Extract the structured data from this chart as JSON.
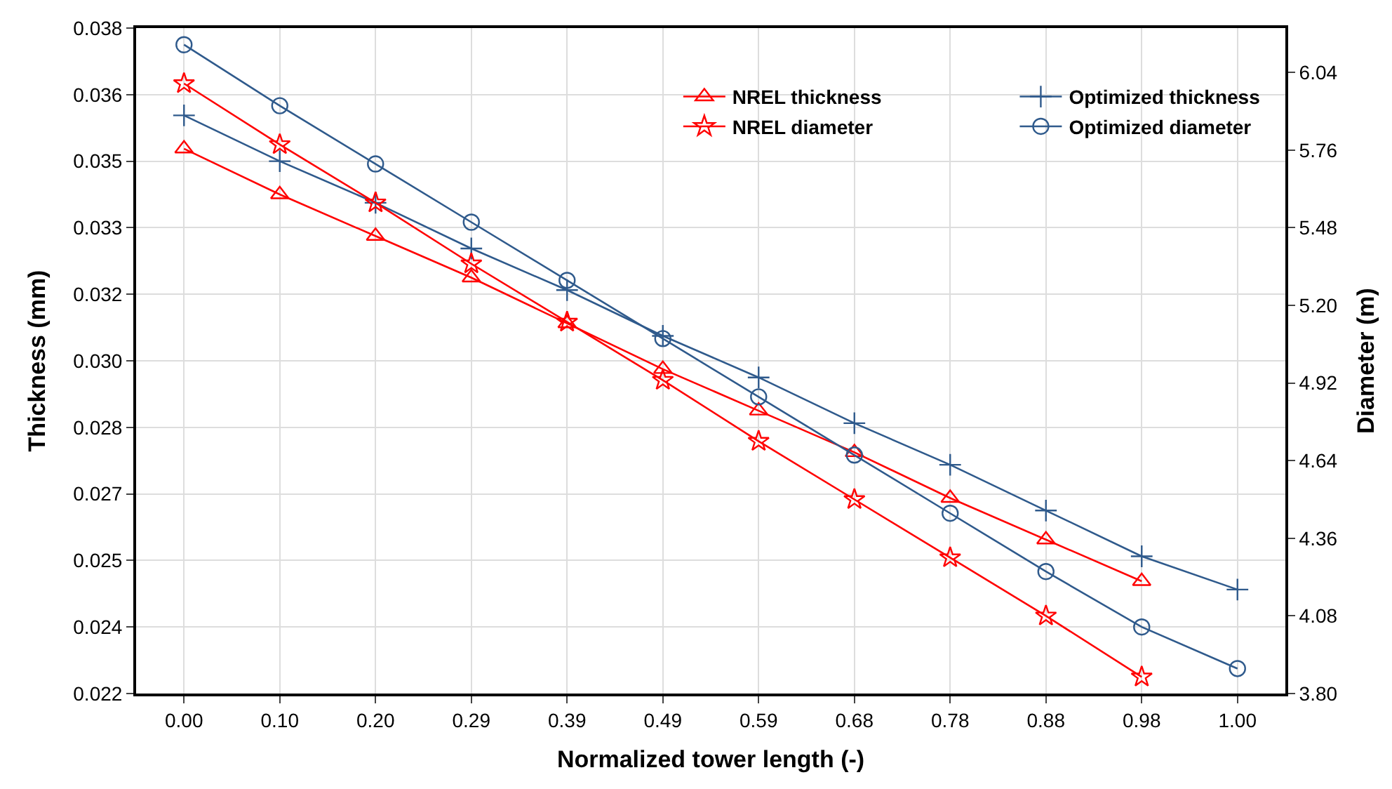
{
  "chart_data": {
    "type": "line",
    "xlabel": "Normalized tower length (-)",
    "ylabel": "Thickness (mm)",
    "y2label": "Diameter (m)",
    "categories": [
      "0.00",
      "0.10",
      "0.20",
      "0.29",
      "0.39",
      "0.49",
      "0.59",
      "0.68",
      "0.78",
      "0.88",
      "0.98",
      "1.00"
    ],
    "series": [
      {
        "name": "NREL thickness",
        "color": "#ff0000",
        "marker": "triangle",
        "values": [
          0.0351,
          0.034,
          0.033,
          0.032,
          0.0309,
          0.0298,
          0.0288,
          0.0278,
          0.0267,
          0.0257,
          0.0247,
          null
        ]
      },
      {
        "name": "Optimized thickness",
        "color": "#2f5a8c",
        "marker": "cross",
        "values": [
          0.0359,
          0.0348,
          0.0338,
          0.0327,
          0.0317,
          0.0306,
          0.0296,
          0.0285,
          0.0275,
          0.0264,
          0.0253,
          0.0245
        ]
      },
      {
        "name": "NREL diameter",
        "color": "#ff0000",
        "marker": "star",
        "axis": "y2",
        "values": [
          6.0,
          5.78,
          5.57,
          5.35,
          5.14,
          4.93,
          4.71,
          4.5,
          4.29,
          4.08,
          3.86,
          null
        ]
      },
      {
        "name": "Optimized diameter",
        "color": "#2f5a8c",
        "marker": "circle",
        "axis": "y2",
        "values": [
          6.14,
          5.92,
          5.71,
          5.5,
          5.29,
          5.08,
          4.87,
          4.66,
          4.45,
          4.24,
          4.04,
          3.89
        ]
      }
    ],
    "ylim": [
      0.022,
      0.038
    ],
    "yticks": [
      {
        "value": 0.022,
        "label": "0.022"
      },
      {
        "value": 0.0236,
        "label": "0.024"
      },
      {
        "value": 0.0252,
        "label": "0.025"
      },
      {
        "value": 0.0268,
        "label": "0.027"
      },
      {
        "value": 0.0284,
        "label": "0.028"
      },
      {
        "value": 0.03,
        "label": "0.030"
      },
      {
        "value": 0.0316,
        "label": "0.032"
      },
      {
        "value": 0.0332,
        "label": "0.033"
      },
      {
        "value": 0.0348,
        "label": "0.035"
      },
      {
        "value": 0.0364,
        "label": "0.036"
      },
      {
        "value": 0.038,
        "label": "0.038"
      }
    ],
    "y2lim": [
      3.8,
      6.2
    ],
    "y2ticks": [
      {
        "value": 3.8,
        "label": "3.80"
      },
      {
        "value": 4.08,
        "label": "4.08"
      },
      {
        "value": 4.36,
        "label": "4.36"
      },
      {
        "value": 4.64,
        "label": "4.64"
      },
      {
        "value": 4.92,
        "label": "4.92"
      },
      {
        "value": 5.2,
        "label": "5.20"
      },
      {
        "value": 5.48,
        "label": "5.48"
      },
      {
        "value": 5.76,
        "label": "5.76"
      },
      {
        "value": 6.04,
        "label": "6.04"
      }
    ],
    "grid": true,
    "legend": "top right",
    "line_style": "solid"
  }
}
